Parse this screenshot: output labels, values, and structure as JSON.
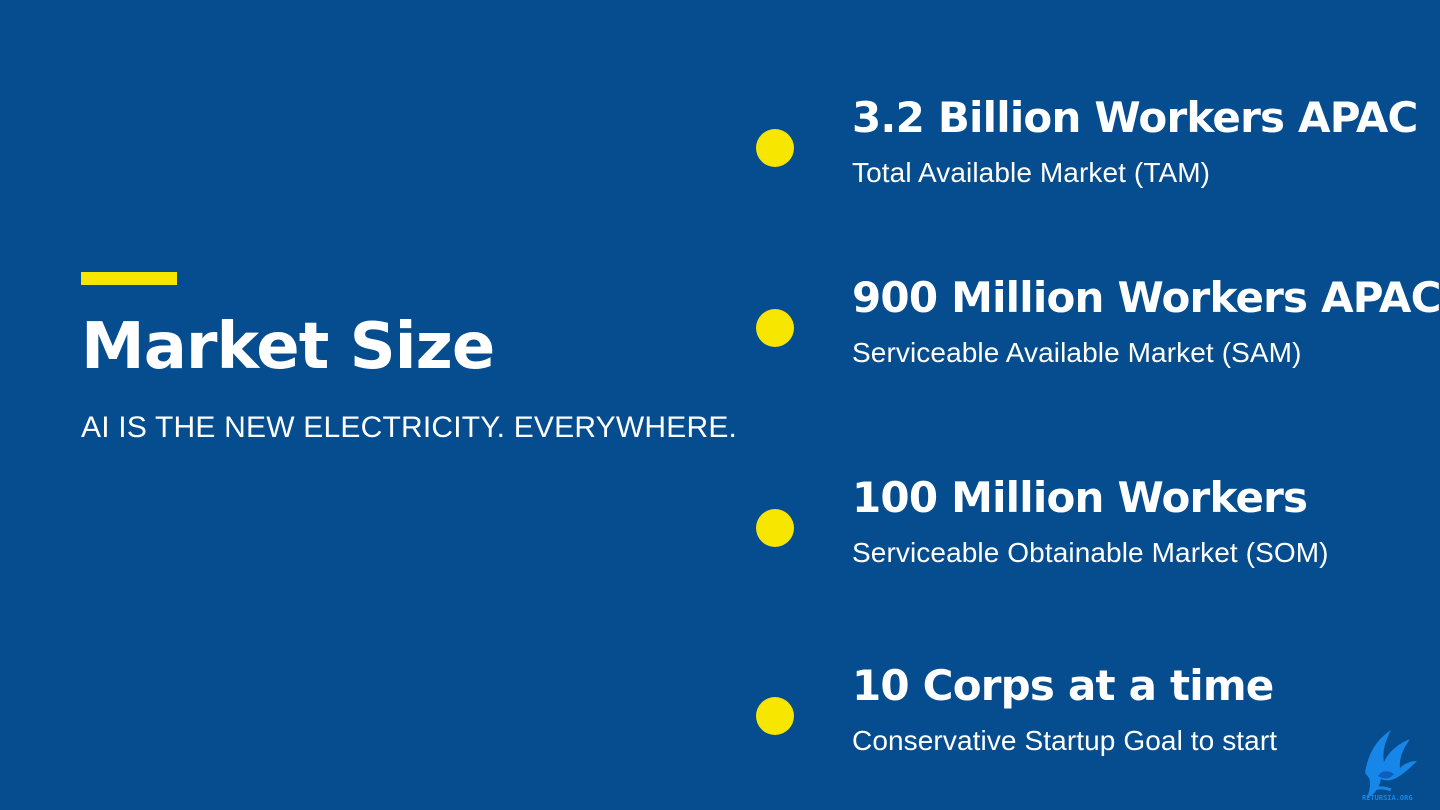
{
  "slide": {
    "title": "Market Size",
    "subtitle": "AI IS THE NEW ELECTRICITY. EVERYWHERE."
  },
  "metrics": [
    {
      "heading": "3.2 Billion Workers APAC",
      "caption": "Total Available Market (TAM)"
    },
    {
      "heading": "900 Million Workers APAC",
      "caption": "Serviceable Available Market (SAM)"
    },
    {
      "heading": "100 Million Workers",
      "caption": "Serviceable Obtainable Market (SOM)"
    },
    {
      "heading": "10 Corps at a time",
      "caption": "Conservative Startup Goal to start"
    }
  ],
  "logo": {
    "text": "RETURSIA.ORG",
    "icon": "winged-bird-logo-icon"
  },
  "colors": {
    "background": "#054d8f",
    "accent": "#f7e600",
    "text": "#ffffff"
  }
}
